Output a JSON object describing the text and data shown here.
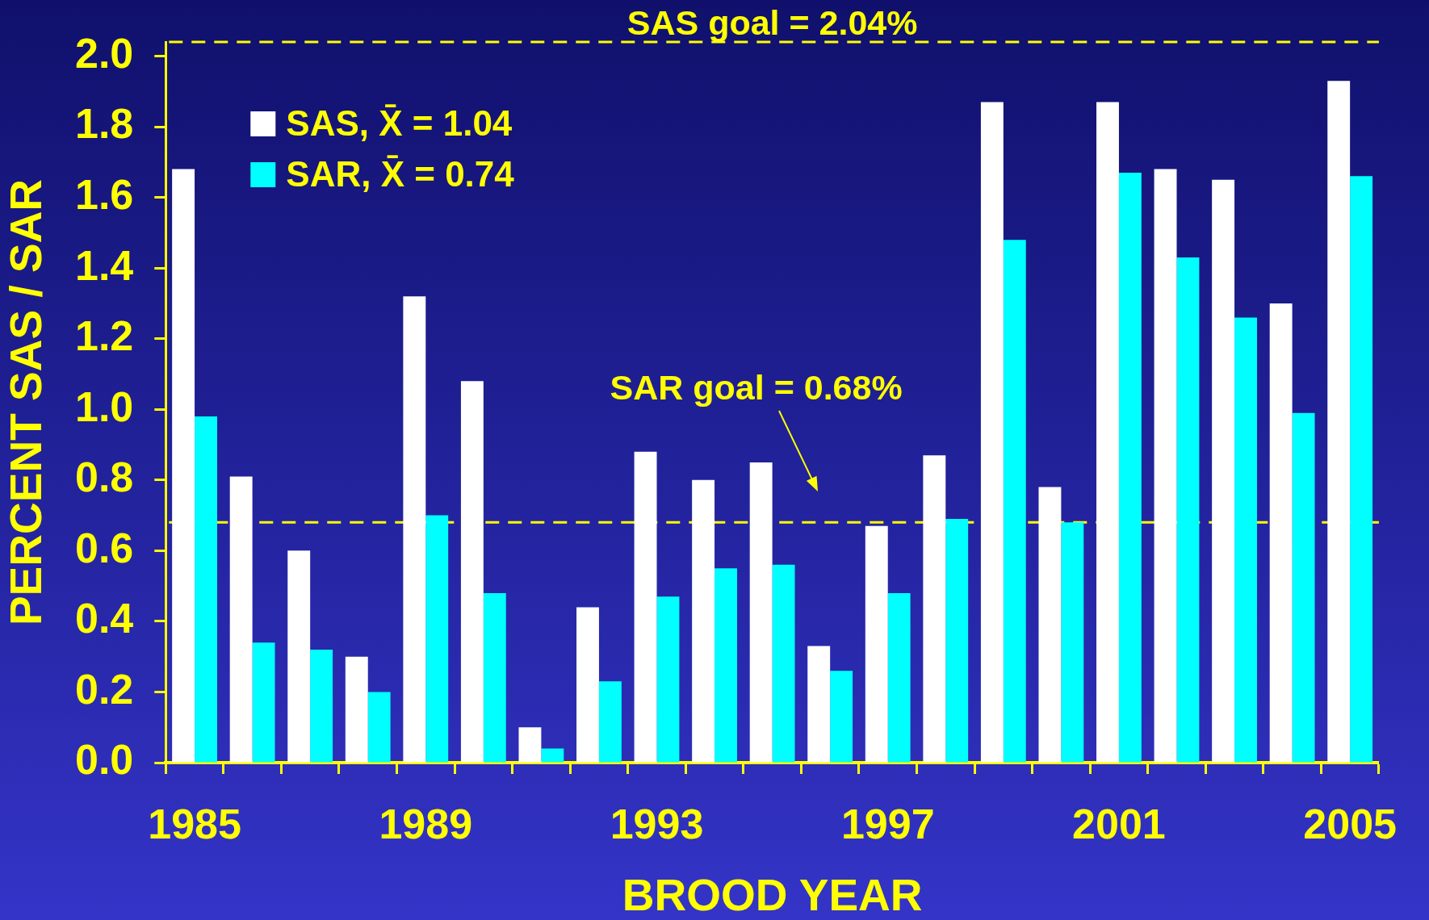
{
  "chart_data": {
    "type": "bar",
    "xlabel": "BROOD YEAR",
    "ylabel": "PERCENT SAS / SAR",
    "categories": [
      "1985",
      null,
      null,
      null,
      "1989",
      null,
      null,
      null,
      "1993",
      null,
      null,
      null,
      "1997",
      null,
      null,
      null,
      "2001",
      null,
      null,
      null,
      "2005"
    ],
    "series": [
      {
        "name": "SAS, X̄ = 1.04",
        "color": "#ffffff",
        "values": [
          1.68,
          0.81,
          0.6,
          0.3,
          1.32,
          1.08,
          0.1,
          0.44,
          0.88,
          0.8,
          0.85,
          0.33,
          0.67,
          0.87,
          1.87,
          0.78,
          1.87,
          1.68,
          1.65,
          1.3,
          1.93
        ]
      },
      {
        "name": "SAR, X̄ = 0.74",
        "color": "#00ffff",
        "values": [
          0.98,
          0.34,
          0.32,
          0.2,
          0.7,
          0.48,
          0.04,
          0.23,
          0.47,
          0.55,
          0.56,
          0.26,
          0.48,
          0.69,
          1.48,
          0.68,
          1.67,
          1.43,
          1.26,
          0.99,
          1.66
        ]
      }
    ],
    "ylim": [
      0,
      2.04
    ],
    "yticks": [
      {
        "value": 0,
        "label": "0.0"
      },
      0.2,
      0.4,
      0.6,
      0.8,
      {
        "value": 1,
        "label": "1.0"
      },
      1.2,
      1.4,
      1.6,
      1.8,
      {
        "value": 2,
        "label": "2.0"
      }
    ],
    "ref_lines": [
      {
        "axis": "y",
        "value": 2.04,
        "label": "SAS goal = 2.04%",
        "color": "#ffff00",
        "line_style": "dashed"
      },
      {
        "axis": "y",
        "value": 0.68,
        "label": "SAR goal = 0.68%",
        "color": "#ffff00",
        "line_style": "dashed"
      }
    ],
    "legend": "top left"
  }
}
